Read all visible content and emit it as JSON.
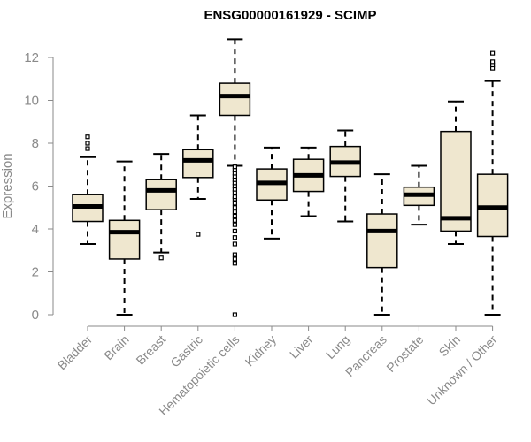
{
  "chart_data": {
    "type": "boxplot",
    "title": "ENSG00000161929 - SCIMP",
    "xlabel": "",
    "ylabel": "Expression",
    "ylim": [
      0,
      12
    ],
    "yticks": [
      0,
      2,
      4,
      6,
      8,
      10,
      12
    ],
    "grid": false,
    "legend": "none",
    "colors": {
      "box_fill": "#efe7cf",
      "stroke": "#000000",
      "axis_text": "#8a8a8a"
    },
    "categories": [
      "Bladder",
      "Brain",
      "Breast",
      "Gastric",
      "Hematopoietic cells",
      "Kidney",
      "Liver",
      "Lung",
      "Pancreas",
      "Prostate",
      "Skin",
      "Unknown / Other"
    ],
    "boxes": [
      {
        "category": "Bladder",
        "whisker_low": 3.3,
        "q1": 4.35,
        "median": 5.05,
        "q3": 5.6,
        "whisker_high": 7.35,
        "outliers": [
          7.75,
          8.0,
          8.3
        ]
      },
      {
        "category": "Brain",
        "whisker_low": 0.0,
        "q1": 2.6,
        "median": 3.85,
        "q3": 4.4,
        "whisker_high": 7.15,
        "outliers": []
      },
      {
        "category": "Breast",
        "whisker_low": 2.9,
        "q1": 4.9,
        "median": 5.8,
        "q3": 6.3,
        "whisker_high": 7.5,
        "outliers": [
          2.65
        ]
      },
      {
        "category": "Gastric",
        "whisker_low": 5.4,
        "q1": 6.4,
        "median": 7.2,
        "q3": 7.7,
        "whisker_high": 9.3,
        "outliers": [
          3.75
        ]
      },
      {
        "category": "Hematopoietic cells",
        "whisker_low": 6.95,
        "q1": 9.3,
        "median": 10.2,
        "q3": 10.8,
        "whisker_high": 12.85,
        "outliers": [
          0.0,
          2.4,
          2.6,
          2.8,
          3.3,
          3.6,
          3.9,
          4.2,
          4.4,
          4.6,
          4.8,
          5.0,
          5.2,
          5.4,
          5.5,
          5.7,
          5.85,
          6.0,
          6.15,
          6.3,
          6.45,
          6.6,
          6.75,
          6.9
        ]
      },
      {
        "category": "Kidney",
        "whisker_low": 3.55,
        "q1": 5.35,
        "median": 6.15,
        "q3": 6.8,
        "whisker_high": 7.8,
        "outliers": []
      },
      {
        "category": "Liver",
        "whisker_low": 4.6,
        "q1": 5.75,
        "median": 6.5,
        "q3": 7.25,
        "whisker_high": 7.8,
        "outliers": []
      },
      {
        "category": "Lung",
        "whisker_low": 4.35,
        "q1": 6.45,
        "median": 7.1,
        "q3": 7.85,
        "whisker_high": 8.6,
        "outliers": []
      },
      {
        "category": "Pancreas",
        "whisker_low": 0.0,
        "q1": 2.2,
        "median": 3.9,
        "q3": 4.7,
        "whisker_high": 6.55,
        "outliers": []
      },
      {
        "category": "Prostate",
        "whisker_low": 4.2,
        "q1": 5.1,
        "median": 5.6,
        "q3": 5.95,
        "whisker_high": 6.95,
        "outliers": []
      },
      {
        "category": "Skin",
        "whisker_low": 3.3,
        "q1": 3.9,
        "median": 4.5,
        "q3": 8.55,
        "whisker_high": 9.95,
        "outliers": []
      },
      {
        "category": "Unknown / Other",
        "whisker_low": 0.0,
        "q1": 3.65,
        "median": 5.0,
        "q3": 6.55,
        "whisker_high": 10.9,
        "outliers": [
          11.5,
          11.65,
          11.8,
          12.2
        ]
      }
    ]
  }
}
